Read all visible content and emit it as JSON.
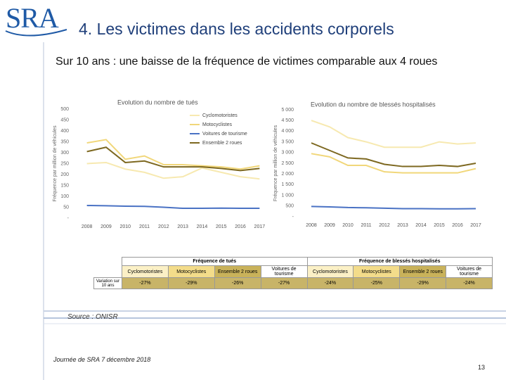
{
  "header": {
    "logo": "SRA",
    "title": "4. Les victimes dans les accidents corporels",
    "subtitle": "Sur 10 ans : une baisse de la fréquence de victimes comparable aux 4 roues"
  },
  "chart_data": [
    {
      "type": "line",
      "title": "Evolution du nombre de tués",
      "y_label": "Fréquence par million de véhicules",
      "categories": [
        "2008",
        "2009",
        "2010",
        "2011",
        "2012",
        "2013",
        "2014",
        "2015",
        "2016",
        "2017"
      ],
      "ylim": [
        0,
        500
      ],
      "yticks": [
        {
          "value": 0,
          "label": "-"
        },
        50,
        100,
        150,
        200,
        250,
        300,
        350,
        400,
        450,
        500
      ],
      "legend": "upper right",
      "series": [
        {
          "name": "Cyclomotoristes",
          "color": "#f7e9b0",
          "values": [
            250,
            255,
            225,
            210,
            183,
            190,
            230,
            210,
            190,
            180
          ]
        },
        {
          "name": "Motocyclistes",
          "color": "#f1d77a",
          "values": [
            345,
            360,
            270,
            285,
            245,
            245,
            240,
            235,
            225,
            240
          ]
        },
        {
          "name": "Voitures de tourisme",
          "color": "#4a72c4",
          "values": [
            58,
            57,
            55,
            54,
            50,
            45,
            45,
            46,
            45,
            45
          ]
        },
        {
          "name": "Ensemble 2 roues",
          "color": "#7d6820",
          "values": [
            305,
            325,
            255,
            262,
            235,
            235,
            235,
            228,
            218,
            228
          ]
        }
      ]
    },
    {
      "type": "line",
      "title": "Evolution du nombre de blessés hospitalisés",
      "y_label": "Fréquence par million de véhicules",
      "categories": [
        "2008",
        "2009",
        "2010",
        "2011",
        "2012",
        "2013",
        "2014",
        "2015",
        "2016",
        "2017"
      ],
      "ylim": [
        0,
        5000
      ],
      "yticks": [
        {
          "value": 0,
          "label": "-"
        },
        500,
        {
          "value": 1000,
          "label": "1 000"
        },
        {
          "value": 1500,
          "label": "1 500"
        },
        {
          "value": 2000,
          "label": "2 000"
        },
        {
          "value": 2500,
          "label": "2 500"
        },
        {
          "value": 3000,
          "label": "3 000"
        },
        {
          "value": 3500,
          "label": "3 500"
        },
        {
          "value": 4000,
          "label": "4 000"
        },
        {
          "value": 4500,
          "label": "4 500"
        },
        {
          "value": 5000,
          "label": "5 000"
        }
      ],
      "series": [
        {
          "color": "#f7e9b0",
          "values": [
            4500,
            4200,
            3700,
            3500,
            3250,
            3250,
            3250,
            3500,
            3400,
            3450
          ]
        },
        {
          "color": "#f1d77a",
          "values": [
            2950,
            2800,
            2400,
            2400,
            2100,
            2050,
            2050,
            2050,
            2050,
            2250
          ]
        },
        {
          "color": "#4a72c4",
          "values": [
            480,
            460,
            430,
            420,
            400,
            380,
            380,
            370,
            370,
            380
          ]
        },
        {
          "color": "#7d6820",
          "values": [
            3450,
            3100,
            2750,
            2700,
            2450,
            2350,
            2350,
            2400,
            2350,
            2500
          ]
        }
      ]
    }
  ],
  "table": {
    "groups": [
      "Fréquence de tués",
      "Fréquence de blessés hospitalisés"
    ],
    "columns": [
      "Cyclomotoristes",
      "Motocyclistes",
      "Ensemble 2 roues",
      "Voitures de tourisme",
      "Cyclomotoristes",
      "Motocyclistes",
      "Ensemble 2 roues",
      "Voitures de tourisme"
    ],
    "row_label": "Variation sur 10 ans",
    "values": [
      "-27%",
      "-29%",
      "-26%",
      "-27%",
      "-24%",
      "-25%",
      "-29%",
      "-24%"
    ]
  },
  "source": "Source : ONISR",
  "footer": "Journée de SRA 7 décembre 2018",
  "page": "13"
}
